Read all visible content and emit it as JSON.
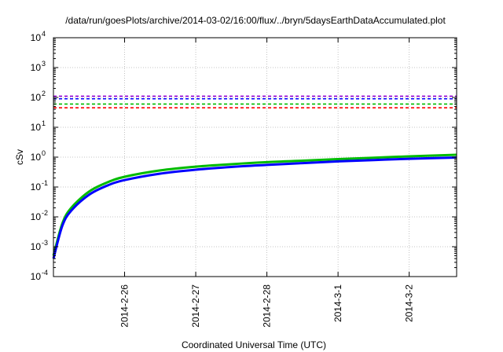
{
  "chart_data": {
    "type": "line",
    "title": "/data/run/goesPlots/archive/2014-03-02/16:00/flux/../bryn/5daysEarthDataAccumulated.plot",
    "xlabel": "Coordinated Universal Time (UTC)",
    "ylabel": "cSv",
    "y_scale": "log",
    "ylim": [
      0.0001,
      10000
    ],
    "y_ticks": [
      {
        "base": "10",
        "exp": "-4",
        "value": 0.0001
      },
      {
        "base": "10",
        "exp": "-3",
        "value": 0.001
      },
      {
        "base": "10",
        "exp": "-2",
        "value": 0.01
      },
      {
        "base": "10",
        "exp": "-1",
        "value": 0.1
      },
      {
        "base": "10",
        "exp": "0",
        "value": 1
      },
      {
        "base": "10",
        "exp": "1",
        "value": 10
      },
      {
        "base": "10",
        "exp": "2",
        "value": 100
      },
      {
        "base": "10",
        "exp": "3",
        "value": 1000
      },
      {
        "base": "10",
        "exp": "4",
        "value": 10000
      }
    ],
    "xlim": [
      "2014-02-25 00:00",
      "2014-03-02 16:00"
    ],
    "x_ticks": [
      "2014-2-26",
      "2014-2-27",
      "2014-2-28",
      "2014-3-1",
      "2014-3-2"
    ],
    "grid": true,
    "legend": "none",
    "reference_lines": [
      {
        "value": 110,
        "color": "#9400d3",
        "style": "dashed"
      },
      {
        "value": 90,
        "color": "#0000ff",
        "style": "dashed"
      },
      {
        "value": 60,
        "color": "#00bb00",
        "style": "dashed"
      },
      {
        "value": 45,
        "color": "#ff0000",
        "style": "dashed"
      }
    ],
    "series": [
      {
        "color": "#00bb00",
        "x": [
          "2014-02-25 00:00",
          "2014-02-25 03:00",
          "2014-02-25 06:00",
          "2014-02-25 12:00",
          "2014-02-25 18:00",
          "2014-02-26 00:00",
          "2014-02-26 12:00",
          "2014-02-27 00:00",
          "2014-02-27 12:00",
          "2014-02-28 00:00",
          "2014-02-28 12:00",
          "2014-03-01 00:00",
          "2014-03-01 12:00",
          "2014-03-02 00:00",
          "2014-03-02 16:00"
        ],
        "y": [
          0.0005,
          0.006,
          0.02,
          0.07,
          0.14,
          0.22,
          0.36,
          0.48,
          0.58,
          0.68,
          0.76,
          0.86,
          0.96,
          1.06,
          1.2
        ]
      },
      {
        "color": "#0000ff",
        "x": [
          "2014-02-25 00:00",
          "2014-02-25 03:00",
          "2014-02-25 06:00",
          "2014-02-25 12:00",
          "2014-02-25 18:00",
          "2014-02-26 00:00",
          "2014-02-26 12:00",
          "2014-02-27 00:00",
          "2014-02-27 12:00",
          "2014-02-28 00:00",
          "2014-02-28 12:00",
          "2014-03-01 00:00",
          "2014-03-01 12:00",
          "2014-03-02 00:00",
          "2014-03-02 16:00"
        ],
        "y": [
          0.0004,
          0.005,
          0.016,
          0.055,
          0.11,
          0.17,
          0.28,
          0.38,
          0.47,
          0.55,
          0.63,
          0.72,
          0.8,
          0.88,
          0.97
        ]
      }
    ]
  }
}
